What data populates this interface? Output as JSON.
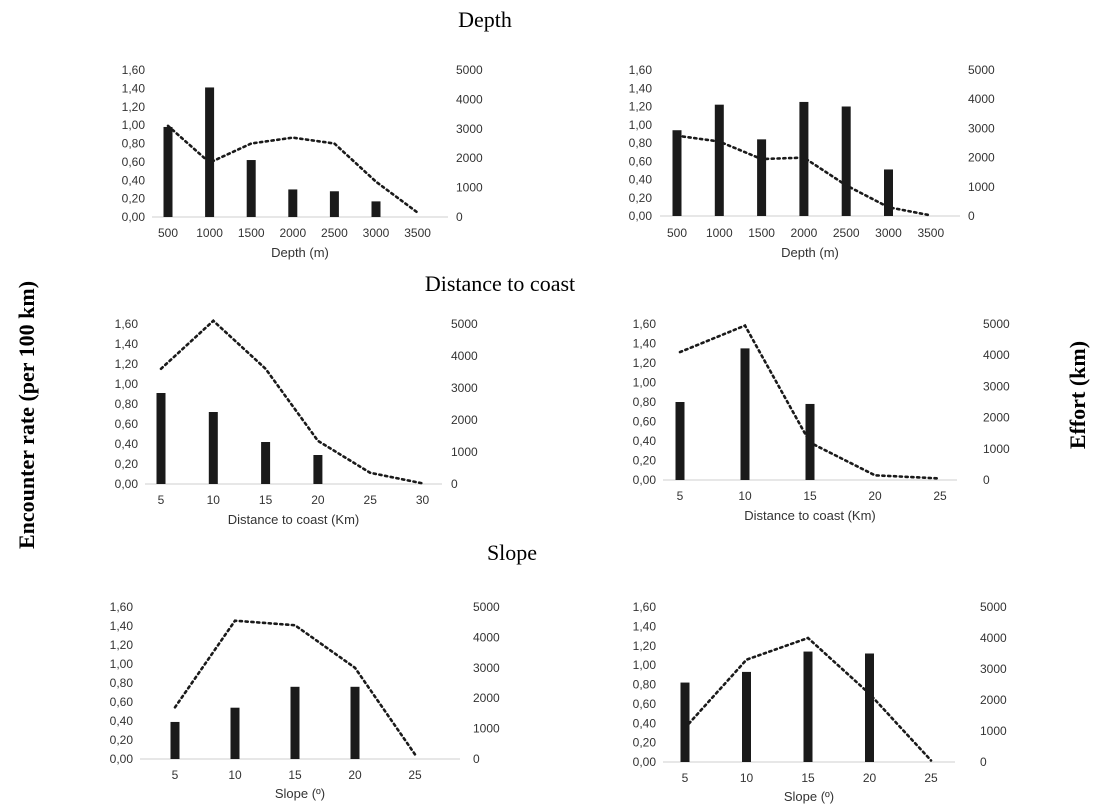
{
  "section_titles": [
    "Depth",
    "Distance to coast",
    "Slope"
  ],
  "left_axis_label": "Encounter rate (per 100 km)",
  "right_axis_label": "Effort (km)",
  "chart_data": [
    {
      "type": "bar",
      "row": 0,
      "col": 0,
      "categories": [
        "500",
        "1000",
        "1500",
        "2000",
        "2500",
        "3000",
        "3500"
      ],
      "xlabel": "Depth (m)",
      "ylim": [
        0,
        1.6
      ],
      "y2lim": [
        0,
        5000
      ],
      "y_ticks": [
        "0,00",
        "0,20",
        "0,40",
        "0,60",
        "0,80",
        "1,00",
        "1,20",
        "1,40",
        "1,60"
      ],
      "y2_ticks": [
        "0",
        "1000",
        "2000",
        "3000",
        "4000",
        "5000"
      ],
      "series": [
        {
          "kind": "bar",
          "axis": "left",
          "values": [
            0.98,
            1.41,
            0.62,
            0.3,
            0.28,
            0.17,
            null
          ]
        },
        {
          "kind": "line",
          "style": "dotted",
          "axis": "right",
          "values": [
            3100,
            1850,
            2500,
            2700,
            2500,
            1200,
            150
          ]
        }
      ]
    },
    {
      "type": "bar",
      "row": 0,
      "col": 1,
      "categories": [
        "500",
        "1000",
        "1500",
        "2000",
        "2500",
        "3000",
        "3500"
      ],
      "xlabel": "Depth (m)",
      "ylim": [
        0,
        1.6
      ],
      "y2lim": [
        0,
        5000
      ],
      "y_ticks": [
        "0,00",
        "0,20",
        "0,40",
        "0,60",
        "0,80",
        "1,00",
        "1,20",
        "1,40",
        "1,60"
      ],
      "y2_ticks": [
        "0",
        "1000",
        "2000",
        "3000",
        "4000",
        "5000"
      ],
      "series": [
        {
          "kind": "bar",
          "axis": "left",
          "values": [
            0.94,
            1.22,
            0.84,
            1.25,
            1.2,
            0.51,
            null
          ]
        },
        {
          "kind": "line",
          "style": "dotted",
          "axis": "right",
          "values": [
            2750,
            2550,
            1950,
            2000,
            1050,
            300,
            20
          ]
        }
      ]
    },
    {
      "type": "bar",
      "row": 1,
      "col": 0,
      "categories": [
        "5",
        "10",
        "15",
        "20",
        "25",
        "30"
      ],
      "xlabel": "Distance to coast (Km)",
      "ylim": [
        0,
        1.6
      ],
      "y2lim": [
        0,
        5000
      ],
      "y_ticks": [
        "0,00",
        "0,20",
        "0,40",
        "0,60",
        "0,80",
        "1,00",
        "1,20",
        "1,40",
        "1,60"
      ],
      "y2_ticks": [
        "0",
        "1000",
        "2000",
        "3000",
        "4000",
        "5000"
      ],
      "series": [
        {
          "kind": "bar",
          "axis": "left",
          "values": [
            0.91,
            0.72,
            0.42,
            0.29,
            null,
            null
          ]
        },
        {
          "kind": "line",
          "style": "dotted",
          "axis": "right",
          "values": [
            3600,
            5100,
            3600,
            1350,
            350,
            20
          ]
        }
      ]
    },
    {
      "type": "bar",
      "row": 1,
      "col": 1,
      "categories": [
        "5",
        "10",
        "15",
        "20",
        "25"
      ],
      "xlabel": "Distance to coast (Km)",
      "ylim": [
        0,
        1.6
      ],
      "y2lim": [
        0,
        5000
      ],
      "y_ticks": [
        "0,00",
        "0,20",
        "0,40",
        "0,60",
        "0,80",
        "1,00",
        "1,20",
        "1,40",
        "1,60"
      ],
      "y2_ticks": [
        "0",
        "1000",
        "2000",
        "3000",
        "4000",
        "5000"
      ],
      "series": [
        {
          "kind": "bar",
          "axis": "left",
          "values": [
            0.8,
            1.35,
            0.78,
            null,
            null
          ]
        },
        {
          "kind": "line",
          "style": "dotted",
          "axis": "right",
          "values": [
            4100,
            4950,
            1200,
            150,
            50
          ]
        }
      ]
    },
    {
      "type": "bar",
      "row": 2,
      "col": 0,
      "categories": [
        "5",
        "10",
        "15",
        "20",
        "25"
      ],
      "xlabel": "Slope (º)",
      "ylim": [
        0,
        1.6
      ],
      "y2lim": [
        0,
        5000
      ],
      "y_ticks": [
        "0,00",
        "0,20",
        "0,40",
        "0,60",
        "0,80",
        "1,00",
        "1,20",
        "1,40",
        "1,60"
      ],
      "y2_ticks": [
        "0",
        "1000",
        "2000",
        "3000",
        "4000",
        "5000"
      ],
      "series": [
        {
          "kind": "bar",
          "axis": "left",
          "values": [
            0.39,
            0.54,
            0.76,
            0.76,
            null
          ]
        },
        {
          "kind": "line",
          "style": "dotted",
          "axis": "right",
          "values": [
            1700,
            4550,
            4400,
            3000,
            150
          ]
        }
      ]
    },
    {
      "type": "bar",
      "row": 2,
      "col": 1,
      "categories": [
        "5",
        "10",
        "15",
        "20",
        "25"
      ],
      "xlabel": "Slope (º)",
      "ylim": [
        0,
        1.6
      ],
      "y2lim": [
        0,
        5000
      ],
      "y_ticks": [
        "0,00",
        "0,20",
        "0,40",
        "0,60",
        "0,80",
        "1,00",
        "1,20",
        "1,40",
        "1,60"
      ],
      "y2_ticks": [
        "0",
        "1000",
        "2000",
        "3000",
        "4000",
        "5000"
      ],
      "series": [
        {
          "kind": "bar",
          "axis": "left",
          "values": [
            0.82,
            0.93,
            1.14,
            1.12,
            null
          ]
        },
        {
          "kind": "line",
          "style": "dotted",
          "axis": "right",
          "values": [
            1100,
            3300,
            4000,
            2200,
            50
          ]
        }
      ]
    }
  ],
  "colors": {
    "bar": "#1a1a1a",
    "line": "#1a1a1a",
    "axis": "#cfcfcf",
    "text": "#333333"
  }
}
